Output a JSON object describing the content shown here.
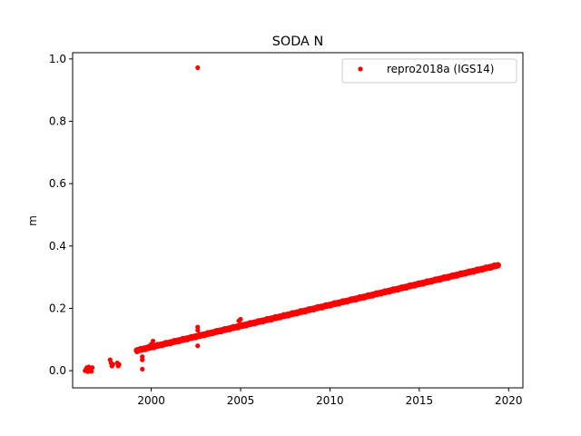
{
  "chart_data": {
    "type": "scatter",
    "title": "SODA N",
    "xlabel": "",
    "ylabel": "m",
    "xlim": [
      1995.6,
      2020.8
    ],
    "ylim": [
      -0.055,
      1.02
    ],
    "xticks": [
      2000,
      2005,
      2010,
      2015,
      2020
    ],
    "xtick_labels": [
      "2000",
      "2005",
      "2010",
      "2015",
      "2020"
    ],
    "yticks": [
      0.0,
      0.2,
      0.4,
      0.6,
      0.8,
      1.0
    ],
    "ytick_labels": [
      "0.0",
      "0.2",
      "0.4",
      "0.6",
      "0.8",
      "1.0"
    ],
    "grid": false,
    "legend_position": "top-right",
    "series": [
      {
        "name": "repro2018a (IGS14)",
        "color": "#ff0000",
        "marker": "dot",
        "trend": {
          "x_start": 1999.2,
          "y_start": 0.065,
          "x_end": 2019.4,
          "y_end": 0.338
        },
        "points": [
          {
            "x": 1996.3,
            "y": 0.0
          },
          {
            "x": 1996.35,
            "y": 0.005
          },
          {
            "x": 1996.4,
            "y": 0.01
          },
          {
            "x": 1996.45,
            "y": -0.003
          },
          {
            "x": 1996.5,
            "y": 0.012
          },
          {
            "x": 1996.55,
            "y": 0.002
          },
          {
            "x": 1996.6,
            "y": 0.008
          },
          {
            "x": 1996.65,
            "y": -0.002
          },
          {
            "x": 1996.7,
            "y": 0.01
          },
          {
            "x": 1997.7,
            "y": 0.035
          },
          {
            "x": 1997.75,
            "y": 0.025
          },
          {
            "x": 1997.8,
            "y": 0.015
          },
          {
            "x": 1997.85,
            "y": 0.02
          },
          {
            "x": 1998.1,
            "y": 0.025
          },
          {
            "x": 1998.15,
            "y": 0.015
          },
          {
            "x": 1998.2,
            "y": 0.02
          },
          {
            "x": 1999.5,
            "y": 0.045
          },
          {
            "x": 1999.5,
            "y": 0.035
          },
          {
            "x": 1999.5,
            "y": 0.005
          },
          {
            "x": 2000.0,
            "y": 0.085
          },
          {
            "x": 2000.1,
            "y": 0.095
          },
          {
            "x": 2002.6,
            "y": 0.972
          },
          {
            "x": 2002.6,
            "y": 0.14
          },
          {
            "x": 2002.6,
            "y": 0.13
          },
          {
            "x": 2002.6,
            "y": 0.08
          },
          {
            "x": 2005.0,
            "y": 0.165
          },
          {
            "x": 2004.9,
            "y": 0.16
          }
        ]
      }
    ]
  }
}
